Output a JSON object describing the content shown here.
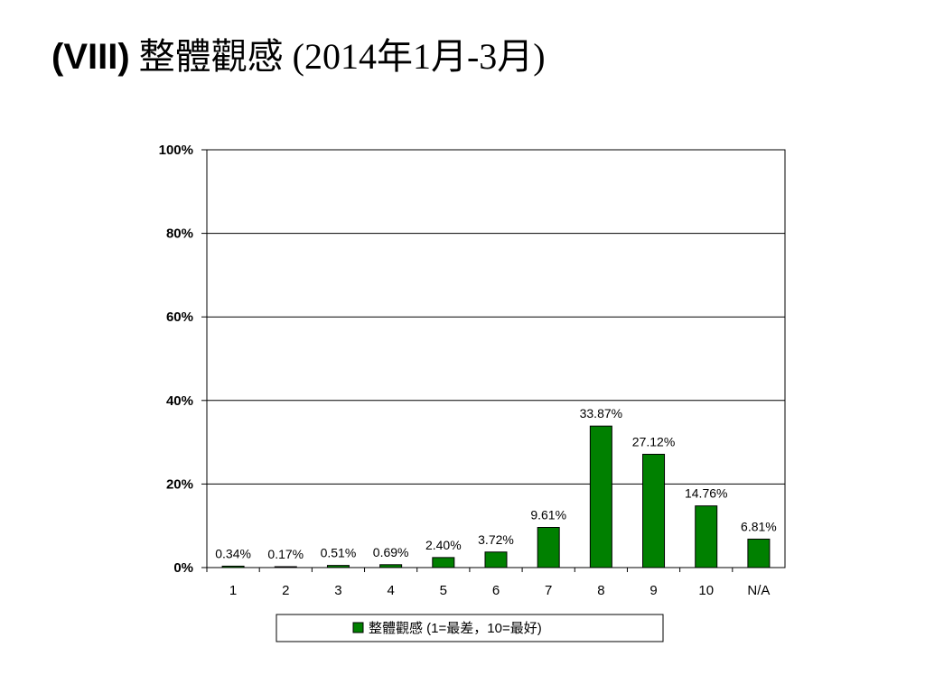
{
  "title": {
    "prefix": "(VIII)",
    "main": "整體觀感 (2014年1月-3月)"
  },
  "chart_data": {
    "type": "bar",
    "categories": [
      "1",
      "2",
      "3",
      "4",
      "5",
      "6",
      "7",
      "8",
      "9",
      "10",
      "N/A"
    ],
    "series": [
      {
        "name": "整體觀感 (1=最差，10=最好)",
        "values": [
          0.34,
          0.17,
          0.51,
          0.69,
          2.4,
          3.72,
          9.61,
          33.87,
          27.12,
          14.76,
          6.81
        ],
        "labels": [
          "0.34%",
          "0.17%",
          "0.51%",
          "0.69%",
          "2.40%",
          "3.72%",
          "9.61%",
          "33.87%",
          "27.12%",
          "14.76%",
          "6.81%"
        ],
        "color": "#008000"
      }
    ],
    "ylim": [
      0,
      100
    ],
    "yticks": [
      0,
      20,
      40,
      60,
      80,
      100
    ],
    "ytick_labels": [
      "0%",
      "20%",
      "40%",
      "60%",
      "80%",
      "100%"
    ],
    "grid": true,
    "legend_position": "bottom"
  }
}
